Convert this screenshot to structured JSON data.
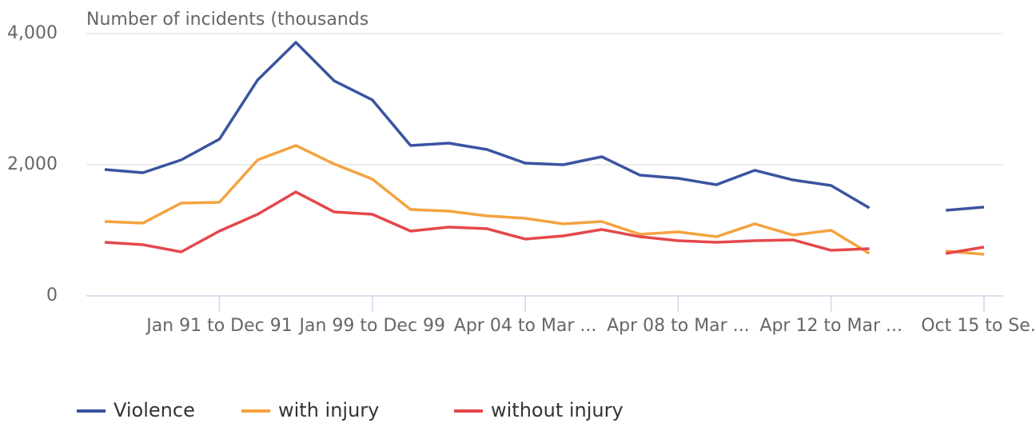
{
  "chart_data": {
    "type": "line",
    "title": "Number of incidents (thousands",
    "categories": [
      null,
      null,
      null,
      "Jan 91 to Dec 91",
      null,
      null,
      null,
      "Jan 99 to Dec 99",
      null,
      null,
      null,
      "Apr 04 to Mar ...",
      null,
      null,
      null,
      "Apr 08 to Mar ...",
      null,
      null,
      null,
      "Apr 12 to Mar ...",
      null,
      null,
      null,
      "Oct 15 to Se..."
    ],
    "series": [
      {
        "name": "Violence",
        "color": "#3b54a0",
        "values": [
          1927,
          1878,
          2073,
          2390,
          3293,
          3866,
          3280,
          2988,
          2293,
          2329,
          2232,
          2024,
          2000,
          2122,
          1841,
          1793,
          1695,
          1915,
          1768,
          1683,
          1341,
          null,
          1305,
          1354
        ]
      },
      {
        "name": "with injury",
        "color": "#f4a340",
        "values": [
          1134,
          1110,
          1415,
          1427,
          2073,
          2293,
          2012,
          1780,
          1317,
          1293,
          1220,
          1183,
          1098,
          1134,
          939,
          976,
          902,
          1098,
          927,
          1000,
          646,
          null,
          683,
          634
        ]
      },
      {
        "name": "without injury",
        "color": "#e4484c",
        "values": [
          817,
          780,
          671,
          988,
          1244,
          1585,
          1280,
          1244,
          988,
          1049,
          1024,
          866,
          915,
          1012,
          902,
          841,
          817,
          841,
          854,
          695,
          720,
          null,
          646,
          744
        ]
      }
    ],
    "ylim": [
      0,
      4000
    ],
    "yticks": [
      0,
      {
        "value": 2000,
        "label": "2,000"
      },
      {
        "value": 4000,
        "label": "4,000"
      }
    ],
    "grid": true,
    "legend": "bottom-left"
  }
}
